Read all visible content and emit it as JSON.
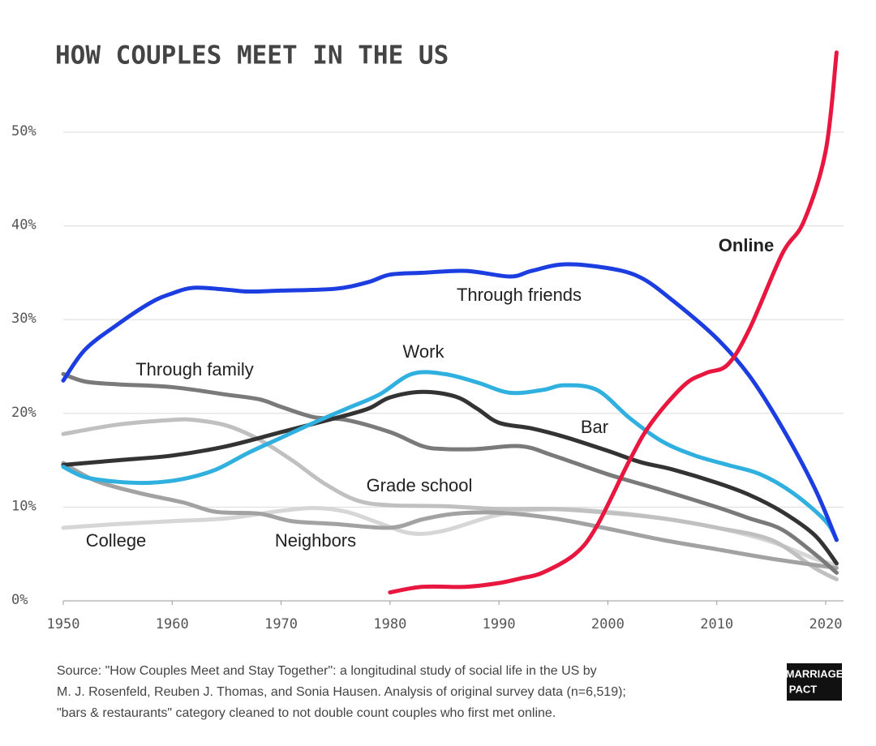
{
  "chart_data": {
    "type": "line",
    "title": "HOW COUPLES MEET IN THE US",
    "xlim": [
      1950,
      2021
    ],
    "xticks": [
      1950,
      1960,
      1970,
      1980,
      1990,
      2000,
      2010,
      2020
    ],
    "ylim": [
      0,
      60
    ],
    "yticks": [
      {
        "value": 0,
        "label": "0%"
      },
      {
        "value": 10,
        "label": "10%"
      },
      {
        "value": 20,
        "label": "20%"
      },
      {
        "value": 30,
        "label": "30%"
      },
      {
        "value": 40,
        "label": "40%"
      },
      {
        "value": 50,
        "label": "50%"
      }
    ],
    "grid": true,
    "series": [
      {
        "name": "College",
        "color": "#d6d6d6",
        "x": [
          1950,
          1955,
          1960,
          1965,
          1970,
          1973,
          1976,
          1979,
          1982,
          1985,
          1990,
          1995,
          2000,
          2005,
          2010,
          2015,
          2019,
          2021
        ],
        "values": [
          7.8,
          8.2,
          8.5,
          8.8,
          9.6,
          9.9,
          9.5,
          8.3,
          7.2,
          7.5,
          9.2,
          9.8,
          9.5,
          8.8,
          7.8,
          6.3,
          4.5,
          3.8
        ]
      },
      {
        "name": "Grade school",
        "color": "#c0c0c0",
        "x": [
          1950,
          1955,
          1960,
          1962,
          1965,
          1968,
          1971,
          1974,
          1977,
          1980,
          1985,
          1990,
          1995,
          2000,
          2005,
          2010,
          2015,
          2019,
          2021
        ],
        "values": [
          17.8,
          18.8,
          19.3,
          19.3,
          18.7,
          17.2,
          15.0,
          12.5,
          10.7,
          10.2,
          10.1,
          9.8,
          9.8,
          9.4,
          8.8,
          7.8,
          6.5,
          3.5,
          2.3
        ]
      },
      {
        "name": "Neighbors",
        "color": "#a2a2a2",
        "x": [
          1950,
          1953,
          1957,
          1961,
          1964,
          1968,
          1971,
          1975,
          1980,
          1983,
          1986,
          1990,
          1995,
          2000,
          2005,
          2010,
          2015,
          2021
        ],
        "values": [
          14.7,
          12.8,
          11.5,
          10.5,
          9.5,
          9.3,
          8.5,
          8.2,
          7.8,
          8.7,
          9.3,
          9.4,
          8.8,
          7.7,
          6.5,
          5.5,
          4.5,
          3.5
        ]
      },
      {
        "name": "Through family",
        "color": "#7a7a7a",
        "x": [
          1950,
          1952,
          1955,
          1960,
          1965,
          1968,
          1970,
          1973,
          1976,
          1980,
          1983,
          1985,
          1988,
          1992,
          1995,
          2000,
          2005,
          2010,
          2013,
          2016,
          2019,
          2021
        ],
        "values": [
          24.2,
          23.4,
          23.1,
          22.8,
          22.0,
          21.5,
          20.7,
          19.6,
          19.3,
          18.0,
          16.5,
          16.2,
          16.2,
          16.5,
          15.5,
          13.5,
          11.8,
          10.0,
          8.8,
          7.6,
          5.0,
          3.0
        ]
      },
      {
        "name": "Bar",
        "color": "#333333",
        "x": [
          1950,
          1955,
          1960,
          1965,
          1970,
          1975,
          1978,
          1980,
          1983,
          1986,
          1988,
          1990,
          1993,
          1996,
          2000,
          2003,
          2006,
          2010,
          2013,
          2016,
          2019,
          2021
        ],
        "values": [
          14.5,
          15.0,
          15.5,
          16.5,
          18.0,
          19.5,
          20.5,
          21.7,
          22.3,
          21.8,
          20.5,
          19.0,
          18.4,
          17.5,
          16.0,
          14.8,
          14.0,
          12.6,
          11.3,
          9.5,
          7.0,
          4.0
        ]
      },
      {
        "name": "Work",
        "color": "#2fb0de",
        "x": [
          1950,
          1952,
          1955,
          1958,
          1961,
          1964,
          1967,
          1970,
          1973,
          1976,
          1979,
          1982,
          1985,
          1988,
          1991,
          1994,
          1996,
          1999,
          2002,
          2005,
          2008,
          2011,
          2014,
          2017,
          2020,
          2021
        ],
        "values": [
          14.3,
          13.2,
          12.7,
          12.6,
          13.0,
          14.0,
          15.8,
          17.4,
          19.0,
          20.5,
          22.0,
          24.2,
          24.2,
          23.3,
          22.2,
          22.5,
          23.0,
          22.5,
          19.5,
          17.0,
          15.5,
          14.5,
          13.5,
          11.5,
          8.5,
          6.5
        ]
      },
      {
        "name": "Through friends",
        "color": "#1c3ee0",
        "x": [
          1950,
          1952,
          1955,
          1958,
          1960,
          1962,
          1965,
          1967,
          1970,
          1975,
          1978,
          1980,
          1983,
          1987,
          1991,
          1993,
          1996,
          2000,
          2003,
          2006,
          2010,
          2013,
          2016,
          2019,
          2021
        ],
        "values": [
          23.5,
          26.8,
          29.5,
          31.8,
          32.8,
          33.4,
          33.2,
          33.0,
          33.1,
          33.3,
          34.0,
          34.8,
          35.0,
          35.2,
          34.6,
          35.2,
          35.9,
          35.5,
          34.5,
          32.0,
          28.0,
          24.0,
          18.5,
          12.0,
          6.5
        ]
      },
      {
        "name": "Online",
        "color": "#e8173f",
        "x": [
          1980,
          1983,
          1987,
          1990,
          1992,
          1994,
          1997,
          1999,
          2002,
          2004,
          2007,
          2009,
          2011,
          2013,
          2016,
          2018,
          2020,
          2021
        ],
        "values": [
          0.9,
          1.5,
          1.5,
          1.9,
          2.4,
          3.0,
          5.0,
          8.0,
          15.0,
          19.0,
          23.0,
          24.3,
          25.2,
          29.0,
          37.0,
          40.5,
          48.0,
          58.5
        ]
      }
    ],
    "source": [
      "Source: \"How Couples Meet and Stay Together\": a longitudinal study of social life in the US by",
      "M. J. Rosenfeld, Reuben J. Thomas, and Sonia Hausen. Analysis of original survey data (n=6,519);",
      "\"bars & restaurants\" category cleaned to not double count couples who first met online."
    ],
    "logo": [
      "MARRIAGE",
      "PACT"
    ]
  }
}
